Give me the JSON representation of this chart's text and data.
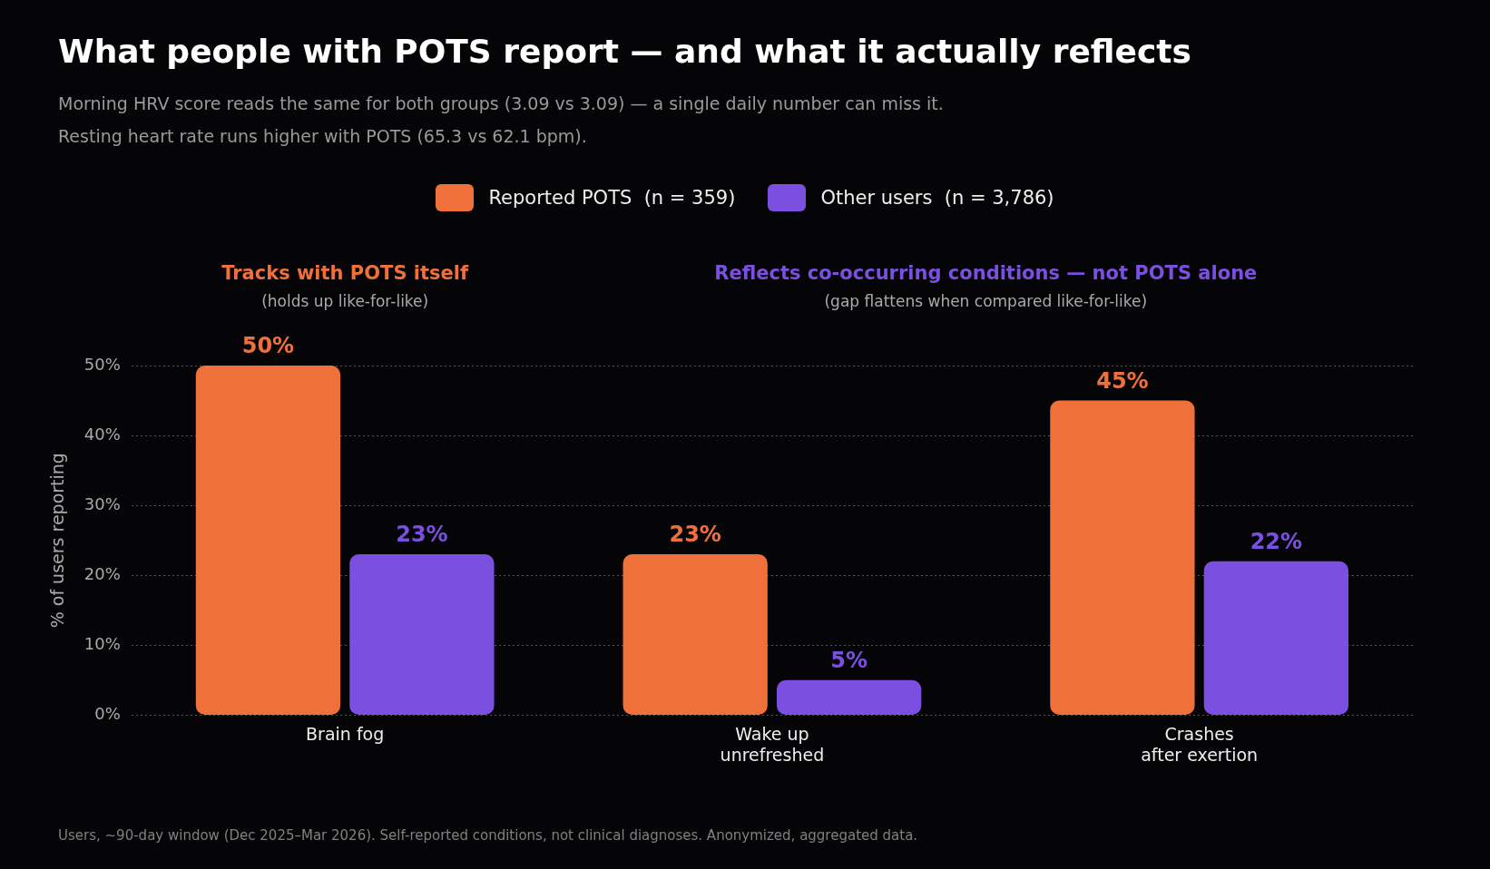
{
  "chart_data": {
    "type": "bar",
    "title": "What people with POTS report — and what it actually reflects",
    "subtitle": "Morning HRV score reads the same for both groups (3.09 vs 3.09) — a single daily number can miss it.\nResting heart rate runs higher with POTS (65.3 vs 62.1 bpm).",
    "ylabel": "% of users reporting",
    "categories": [
      "Brain fog",
      "Wake up\nunrefreshed",
      "Crashes\nafter exertion"
    ],
    "series": [
      {
        "name": "Reported POTS  (n = 359)",
        "color": "#f0703c",
        "values": [
          50,
          23,
          45
        ],
        "value_labels": [
          "50%",
          "23%",
          "45%"
        ]
      },
      {
        "name": "Other users  (n = 3,786)",
        "color": "#7b4fe0",
        "values": [
          23,
          5,
          22
        ],
        "value_labels": [
          "23%",
          "5%",
          "22%"
        ]
      }
    ],
    "ylim": [
      0,
      50
    ],
    "yticks": [
      {
        "value": 0,
        "label": "0%"
      },
      {
        "value": 10,
        "label": "10%"
      },
      {
        "value": 20,
        "label": "20%"
      },
      {
        "value": 30,
        "label": "30%"
      },
      {
        "value": 40,
        "label": "40%"
      },
      {
        "value": 50,
        "label": "50%"
      }
    ],
    "grid": "y",
    "legend": "top",
    "annotations": [
      "Tracks with POTS itself",
      "(holds up like-for-like)",
      "Reflects co-occurring conditions — not POTS alone",
      "(gap flattens when compared like-for-like)",
      "Users, ~90-day window (Dec 2025–Mar 2026). Self-reported conditions, not clinical diagnoses. Anonymized, aggregated data."
    ]
  }
}
